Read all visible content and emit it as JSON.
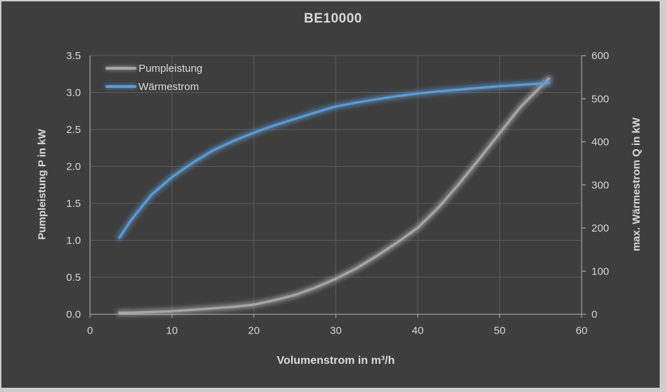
{
  "window": {
    "background": "#3e3e3e",
    "frame_color": "#cdcdcd",
    "text_color": "#d9d9d9",
    "grid_color": "#5a5a5a",
    "axis_color": "#9a9a9a"
  },
  "chart_data": {
    "type": "line",
    "title": "BE10000",
    "grid": true,
    "legend_position": "top-left-inside",
    "x_axis": {
      "label": "Volumenstrom in m³/h",
      "min": 0,
      "max": 60,
      "ticks": [
        "0",
        "10",
        "20",
        "30",
        "40",
        "50",
        "60"
      ]
    },
    "y_left_axis": {
      "label": "Pumpleistung P in kW",
      "min": 0,
      "max": 3.5,
      "ticks": [
        "0.0",
        "0.5",
        "1.0",
        "1.5",
        "2.0",
        "2.5",
        "3.0",
        "3.5"
      ]
    },
    "y_right_axis": {
      "label": "max. Wärmestrom Q in kW",
      "min": 0,
      "max": 600,
      "ticks": [
        "0",
        "100",
        "200",
        "300",
        "400",
        "500",
        "600"
      ]
    },
    "series": [
      {
        "name": "Pumpleistung",
        "axis": "left",
        "color": "#a6a6a6",
        "glow_color": "rgba(210,210,210,0.45)",
        "points": [
          [
            3.6,
            0.02
          ],
          [
            5,
            0.02
          ],
          [
            7.5,
            0.03
          ],
          [
            10,
            0.04
          ],
          [
            12.5,
            0.06
          ],
          [
            15,
            0.08
          ],
          [
            17.5,
            0.1
          ],
          [
            20,
            0.13
          ],
          [
            22.5,
            0.19
          ],
          [
            25,
            0.26
          ],
          [
            27.5,
            0.36
          ],
          [
            30,
            0.48
          ],
          [
            32.5,
            0.62
          ],
          [
            35,
            0.79
          ],
          [
            37.5,
            0.97
          ],
          [
            40,
            1.17
          ],
          [
            42.5,
            1.44
          ],
          [
            45,
            1.76
          ],
          [
            47.5,
            2.1
          ],
          [
            50,
            2.45
          ],
          [
            52.5,
            2.8
          ],
          [
            55,
            3.08
          ],
          [
            56,
            3.19
          ]
        ]
      },
      {
        "name": "Wärmestrom",
        "axis": "right",
        "color": "#5b9bd5",
        "glow_color": "rgba(91,155,213,0.55)",
        "points": [
          [
            3.6,
            178
          ],
          [
            5,
            218
          ],
          [
            7.5,
            277
          ],
          [
            10,
            318
          ],
          [
            12.5,
            351
          ],
          [
            15,
            380
          ],
          [
            17.5,
            402
          ],
          [
            20,
            421
          ],
          [
            22.5,
            438
          ],
          [
            25,
            453
          ],
          [
            27.5,
            468
          ],
          [
            30,
            482
          ],
          [
            32.5,
            491
          ],
          [
            35,
            499
          ],
          [
            37.5,
            506
          ],
          [
            40,
            512
          ],
          [
            42.5,
            517
          ],
          [
            45,
            521
          ],
          [
            47.5,
            525
          ],
          [
            50,
            529
          ],
          [
            52.5,
            532
          ],
          [
            55,
            535
          ],
          [
            56,
            537
          ]
        ]
      }
    ]
  }
}
